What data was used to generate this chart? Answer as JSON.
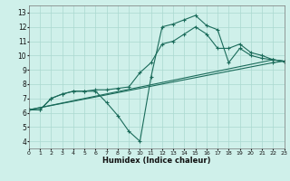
{
  "xlabel": "Humidex (Indice chaleur)",
  "background_color": "#cff0ea",
  "grid_color": "#aad8d0",
  "line_color": "#1a6b5a",
  "xlim": [
    0,
    23
  ],
  "ylim": [
    3.5,
    13.5
  ],
  "xticks": [
    0,
    1,
    2,
    3,
    4,
    5,
    6,
    7,
    8,
    9,
    10,
    11,
    12,
    13,
    14,
    15,
    16,
    17,
    18,
    19,
    20,
    21,
    22,
    23
  ],
  "yticks": [
    4,
    5,
    6,
    7,
    8,
    9,
    10,
    11,
    12,
    13
  ],
  "lines": [
    {
      "x": [
        0,
        1,
        2,
        3,
        4,
        5,
        6,
        7,
        8,
        9,
        10,
        11,
        12,
        13,
        14,
        15,
        16,
        17,
        18,
        19,
        20,
        21,
        22,
        23
      ],
      "y": [
        6.2,
        6.2,
        7.0,
        7.3,
        7.5,
        7.5,
        7.5,
        6.7,
        5.8,
        4.7,
        4.0,
        8.5,
        12.0,
        12.2,
        12.5,
        12.8,
        12.1,
        11.8,
        9.5,
        10.5,
        10.0,
        9.8,
        9.7,
        9.6
      ]
    },
    {
      "x": [
        0,
        1,
        2,
        3,
        4,
        5,
        6,
        7,
        8,
        9,
        10,
        11,
        12,
        13,
        14,
        15,
        16,
        17,
        18,
        19,
        20,
        21,
        22,
        23
      ],
      "y": [
        6.2,
        6.2,
        7.0,
        7.3,
        7.5,
        7.5,
        7.6,
        7.6,
        7.7,
        7.8,
        8.8,
        9.5,
        10.8,
        11.0,
        11.5,
        12.0,
        11.5,
        10.5,
        10.5,
        10.8,
        10.2,
        10.0,
        9.7,
        9.6
      ]
    },
    {
      "x": [
        0,
        22,
        23
      ],
      "y": [
        6.2,
        9.7,
        9.6
      ]
    },
    {
      "x": [
        0,
        22,
        23
      ],
      "y": [
        6.2,
        9.5,
        9.6
      ]
    }
  ]
}
